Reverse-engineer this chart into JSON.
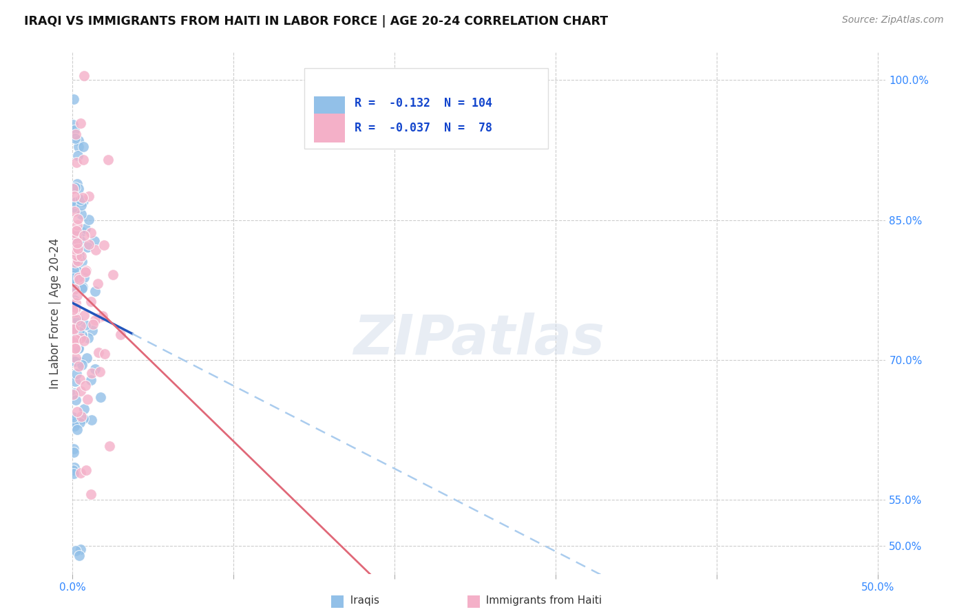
{
  "title": "IRAQI VS IMMIGRANTS FROM HAITI IN LABOR FORCE | AGE 20-24 CORRELATION CHART",
  "source": "Source: ZipAtlas.com",
  "ylabel": "In Labor Force | Age 20-24",
  "legend_label1": "Iraqis",
  "legend_label2": "Immigrants from Haiti",
  "R1": -0.132,
  "N1": 104,
  "R2": -0.037,
  "N2": 78,
  "color_blue": "#92c0e8",
  "color_pink": "#f4b0c8",
  "trendline_blue_solid": "#2255bb",
  "trendline_pink_solid": "#e06878",
  "trendline_blue_dashed": "#aaccee",
  "watermark": "ZIPatlas",
  "background": "#ffffff",
  "xlim": [
    0.0,
    0.505
  ],
  "ylim": [
    0.47,
    1.03
  ],
  "x_ticks": [
    0.0,
    0.1,
    0.2,
    0.3,
    0.4,
    0.5
  ],
  "x_tick_labels": [
    "0.0%",
    "",
    "",
    "",
    "",
    "50.0%"
  ],
  "y_ticks": [
    0.5,
    0.55,
    0.7,
    0.85,
    1.0
  ],
  "y_tick_labels": [
    "50.0%",
    "55.0%",
    "70.0%",
    "85.0%",
    "100.0%"
  ]
}
